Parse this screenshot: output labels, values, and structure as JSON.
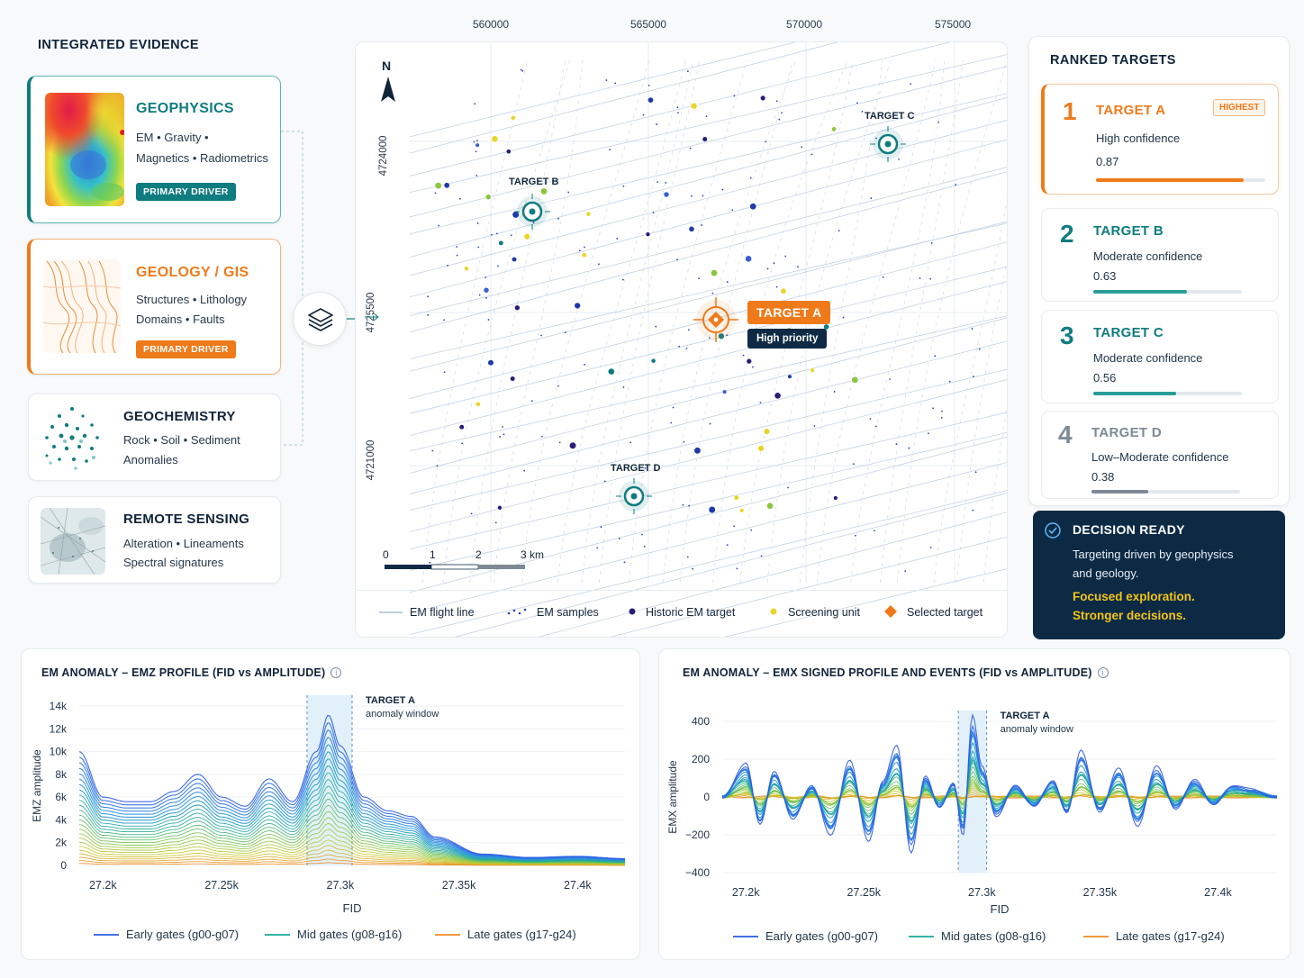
{
  "evidence": {
    "title": "INTEGRATED EVIDENCE",
    "cards": [
      {
        "title": "GEOPHYSICS",
        "line1": "EM • Gravity •",
        "line2": "Magnetics • Radiometrics",
        "badge": "PRIMARY DRIVER",
        "color": "#0f7c80"
      },
      {
        "title": "GEOLOGY / GIS",
        "line1": "Structures • Lithology",
        "line2": "Domains • Faults",
        "badge": "PRIMARY DRIVER",
        "color": "#ef7a1a"
      },
      {
        "title": "GEOCHEMISTRY",
        "line1": "Rock • Soil • Sediment",
        "line2": "Anomalies"
      },
      {
        "title": "REMOTE SENSING",
        "line1": "Alteration • Lineaments",
        "line2": "Spectral signatures"
      }
    ]
  },
  "map": {
    "x_ticks": [
      "560000",
      "565000",
      "570000",
      "575000"
    ],
    "y_ticks": [
      "4724000",
      "4725500",
      "4721000"
    ],
    "north": "N",
    "scale": {
      "labels": [
        "0",
        "1",
        "2",
        "3 km"
      ]
    },
    "targets": {
      "a": {
        "label": "TARGET A",
        "sub": "High priority"
      },
      "b": {
        "label": "TARGET B"
      },
      "c": {
        "label": "TARGET C"
      },
      "d": {
        "label": "TARGET D"
      }
    },
    "legend": [
      "EM flight line",
      "EM samples",
      "Historic EM target",
      "Screening unit",
      "Selected target"
    ]
  },
  "ranked": {
    "title": "RANKED TARGETS",
    "items": [
      {
        "rank": "1",
        "name": "TARGET A",
        "tag": "HIGHEST",
        "confidence": "High confidence",
        "value": "0.87",
        "fraction": 0.87
      },
      {
        "rank": "2",
        "name": "TARGET B",
        "confidence": "Moderate confidence",
        "value": "0.63",
        "fraction": 0.63
      },
      {
        "rank": "3",
        "name": "TARGET C",
        "confidence": "Moderate confidence",
        "value": "0.56",
        "fraction": 0.56
      },
      {
        "rank": "4",
        "name": "TARGET D",
        "confidence": "Low–Moderate confidence",
        "value": "0.38",
        "fraction": 0.38
      }
    ],
    "colors": {
      "a": "#ef7a1a",
      "b": "#0f7c80",
      "c": "#2a9d99",
      "d": "#7d8a96"
    }
  },
  "decision": {
    "title": "DECISION READY",
    "line1": "Targeting driven by geophysics",
    "line2": "and geology.",
    "highlight1": "Focused exploration.",
    "highlight2": "Stronger decisions."
  },
  "chart_data": [
    {
      "type": "line",
      "title": "EM ANOMALY – EMZ PROFILE (FID vs AMPLITUDE)",
      "xlabel": "FID",
      "ylabel": "EMZ amplitude",
      "x_tick_labels": [
        "27.2k",
        "27.25k",
        "27.3k",
        "27.35k",
        "27.4k"
      ],
      "y_tick_labels": [
        "0",
        "2k",
        "4k",
        "6k",
        "8k",
        "10k",
        "12k",
        "14k"
      ],
      "xlim": [
        27190,
        27420
      ],
      "ylim": [
        0,
        14000
      ],
      "annotation": {
        "title": "TARGET A",
        "sub": "anomaly window",
        "x_range": [
          27286,
          27305
        ]
      },
      "series": [
        {
          "name": "Early gates (g00-g07)",
          "color": "#2d5be3"
        },
        {
          "name": "Mid gates (g08-g16)",
          "color": "#1aa79a"
        },
        {
          "name": "Late gates (g17-g24)",
          "color": "#f08a24"
        }
      ],
      "early_gate_profile": {
        "x": [
          27190,
          27200,
          27210,
          27220,
          27230,
          27240,
          27250,
          27260,
          27270,
          27280,
          27290,
          27295,
          27300,
          27310,
          27320,
          27330,
          27340,
          27360,
          27380,
          27400,
          27420
        ],
        "y": [
          10000,
          6000,
          5600,
          5600,
          6500,
          8000,
          6000,
          5200,
          7600,
          5600,
          10000,
          13200,
          10500,
          6000,
          4800,
          4300,
          2500,
          1000,
          700,
          800,
          600
        ]
      }
    },
    {
      "type": "line",
      "title": "EM ANOMALY – EMX SIGNED PROFILE AND EVENTS (FID vs AMPLITUDE)",
      "xlabel": "FID",
      "ylabel": "EMX amplitude",
      "x_tick_labels": [
        "27.2k",
        "27.25k",
        "27.3k",
        "27.35k",
        "27.4k"
      ],
      "y_tick_labels": [
        "400",
        "200",
        "0",
        "−200",
        "−400"
      ],
      "xlim": [
        27190,
        27425
      ],
      "ylim": [
        -400,
        400
      ],
      "annotation": {
        "title": "TARGET A",
        "sub": "anomaly window",
        "x_range": [
          27290,
          27302
        ]
      },
      "series": [
        {
          "name": "Early gates (g00-g07)",
          "color": "#2d5be3"
        },
        {
          "name": "Mid gates (g08-g16)",
          "color": "#1aa79a"
        },
        {
          "name": "Late gates (g17-g24)",
          "color": "#f08a24"
        }
      ],
      "early_gate_profile": {
        "x": [
          27190,
          27200,
          27206,
          27212,
          27220,
          27228,
          27236,
          27244,
          27252,
          27258,
          27264,
          27270,
          27276,
          27282,
          27288,
          27292,
          27296,
          27300,
          27306,
          27314,
          27322,
          27330,
          27336,
          27342,
          27350,
          27358,
          27366,
          27374,
          27382,
          27390,
          27398,
          27406,
          27414,
          27425
        ],
        "y": [
          0,
          180,
          -150,
          140,
          -120,
          60,
          -200,
          190,
          -230,
          80,
          270,
          -290,
          110,
          -60,
          80,
          -200,
          430,
          160,
          -100,
          60,
          -50,
          90,
          -90,
          250,
          -80,
          150,
          -150,
          160,
          -60,
          90,
          -40,
          60,
          40,
          0
        ]
      }
    }
  ]
}
